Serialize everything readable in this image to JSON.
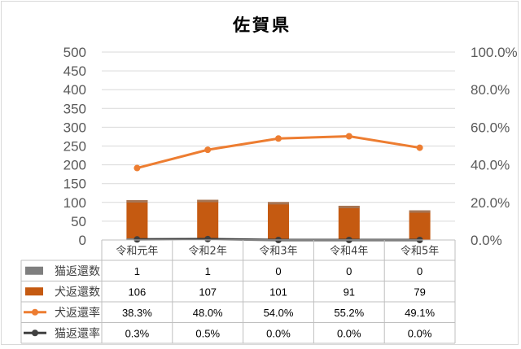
{
  "chart_data": {
    "type": "bar",
    "title": "佐賀県",
    "categories": [
      "令和元年",
      "令和2年",
      "令和3年",
      "令和4年",
      "令和5年"
    ],
    "y_left": {
      "ylim": [
        0,
        500
      ],
      "ticks": [
        "500",
        "450",
        "400",
        "350",
        "300",
        "250",
        "200",
        "150",
        "100",
        "50",
        "0"
      ]
    },
    "y_right": {
      "ylim": [
        0,
        100
      ],
      "ticks": [
        "100.0%",
        "80.0%",
        "60.0%",
        "40.0%",
        "20.0%",
        "0.0%"
      ]
    },
    "grid": true,
    "legend": "data-table",
    "series": [
      {
        "name": "猫返還数",
        "type": "bar",
        "axis": "left",
        "color": "#7f7f7f",
        "values": [
          1,
          1,
          0,
          0,
          0
        ],
        "labels": [
          "1",
          "1",
          "0",
          "0",
          "0"
        ]
      },
      {
        "name": "犬返還数",
        "type": "bar",
        "axis": "left",
        "color": "#c55a11",
        "values": [
          106,
          107,
          101,
          91,
          79
        ],
        "labels": [
          "106",
          "107",
          "101",
          "91",
          "79"
        ]
      },
      {
        "name": "犬返還率",
        "type": "line",
        "axis": "right",
        "color": "#ed7d31",
        "values": [
          38.3,
          48.0,
          54.0,
          55.2,
          49.1
        ],
        "labels": [
          "38.3%",
          "48.0%",
          "54.0%",
          "55.2%",
          "49.1%"
        ]
      },
      {
        "name": "猫返還率",
        "type": "line",
        "axis": "right",
        "color": "#404040",
        "values": [
          0.3,
          0.5,
          0.0,
          0.0,
          0.0
        ],
        "labels": [
          "0.3%",
          "0.5%",
          "0.0%",
          "0.0%",
          "0.0%"
        ]
      }
    ]
  }
}
